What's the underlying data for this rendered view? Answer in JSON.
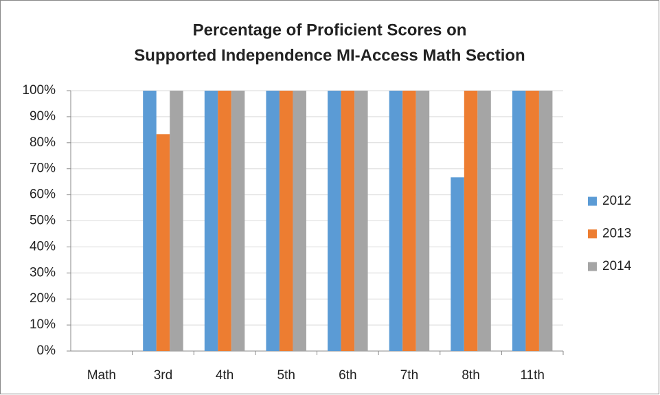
{
  "chart_data": {
    "type": "bar",
    "title": [
      "Percentage of Proficient Scores on",
      "Supported Independence MI-Access Math Section"
    ],
    "categories": [
      "Math",
      "3rd",
      "4th",
      "5th",
      "6th",
      "7th",
      "8th",
      "11th"
    ],
    "series": [
      {
        "name": "2012",
        "color": "#5b9bd5",
        "values": [
          null,
          100,
          100,
          100,
          100,
          100,
          66.7,
          100
        ]
      },
      {
        "name": "2013",
        "color": "#ed7d31",
        "values": [
          null,
          83.3,
          100,
          100,
          100,
          100,
          100,
          100
        ]
      },
      {
        "name": "2014",
        "color": "#a5a5a5",
        "values": [
          null,
          100,
          100,
          100,
          100,
          100,
          100,
          100
        ]
      }
    ],
    "ylim": [
      0,
      100
    ],
    "yticks": [
      {
        "value": 0,
        "label": "0%"
      },
      {
        "value": 10,
        "label": "10%"
      },
      {
        "value": 20,
        "label": "20%"
      },
      {
        "value": 30,
        "label": "30%"
      },
      {
        "value": 40,
        "label": "40%"
      },
      {
        "value": 50,
        "label": "50%"
      },
      {
        "value": 60,
        "label": "60%"
      },
      {
        "value": 70,
        "label": "70%"
      },
      {
        "value": 80,
        "label": "80%"
      },
      {
        "value": 90,
        "label": "90%"
      },
      {
        "value": 100,
        "label": "100%"
      }
    ],
    "grid": true,
    "legend": "right"
  }
}
